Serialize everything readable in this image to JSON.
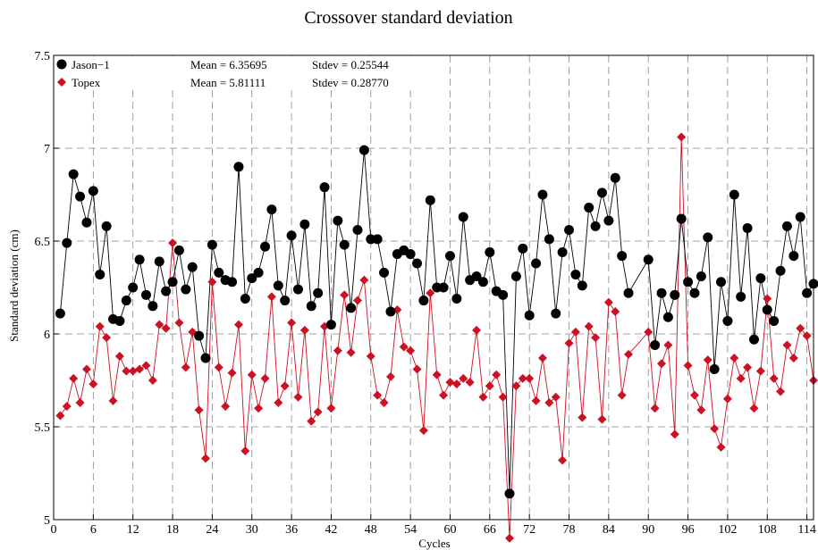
{
  "chart_data": {
    "type": "line",
    "title": "Crossover standard deviation",
    "xlabel": "Cycles",
    "ylabel": "Standard deviation (cm)",
    "xlim": [
      0,
      115
    ],
    "ylim": [
      5,
      7.5
    ],
    "xticks": [
      "0",
      "6",
      "12",
      "18",
      "24",
      "30",
      "36",
      "42",
      "48",
      "54",
      "60",
      "66",
      "72",
      "78",
      "84",
      "90",
      "96",
      "102",
      "108",
      "114"
    ],
    "yticks": [
      "5",
      "5.5",
      "6",
      "6.5",
      "7",
      "7.5"
    ],
    "grid": true,
    "legend_position": "top-left",
    "series": [
      {
        "name": "Jason−1",
        "color": "#000000",
        "marker": "circle",
        "stats": {
          "mean_label": "Mean = 6.35695",
          "stdev_label": "Stdev = 0.25544"
        },
        "x": [
          1,
          2,
          3,
          4,
          5,
          6,
          7,
          8,
          9,
          10,
          11,
          12,
          13,
          14,
          15,
          16,
          17,
          18,
          19,
          20,
          21,
          22,
          23,
          24,
          25,
          26,
          27,
          28,
          29,
          30,
          31,
          32,
          33,
          34,
          35,
          36,
          37,
          38,
          39,
          40,
          41,
          42,
          43,
          44,
          45,
          46,
          47,
          48,
          49,
          50,
          51,
          52,
          53,
          54,
          55,
          56,
          57,
          58,
          59,
          60,
          61,
          62,
          63,
          64,
          65,
          66,
          67,
          68,
          69,
          70,
          71,
          72,
          73,
          74,
          75,
          76,
          77,
          78,
          79,
          80,
          81,
          82,
          83,
          84,
          85,
          86,
          87,
          90,
          91,
          92,
          93,
          94,
          95,
          96,
          97,
          98,
          99,
          100,
          101,
          102,
          103,
          104,
          105,
          106,
          107,
          108,
          109,
          110,
          111,
          112,
          113,
          114,
          115
        ],
        "y": [
          6.11,
          6.49,
          6.86,
          6.74,
          6.6,
          6.77,
          6.32,
          6.58,
          6.08,
          6.07,
          6.18,
          6.25,
          6.4,
          6.21,
          6.15,
          6.39,
          6.23,
          6.28,
          6.45,
          6.24,
          6.36,
          5.99,
          5.87,
          6.48,
          6.33,
          6.29,
          6.28,
          6.9,
          6.19,
          6.3,
          6.33,
          6.47,
          6.67,
          6.26,
          6.18,
          6.53,
          6.24,
          6.59,
          6.15,
          6.22,
          6.79,
          6.05,
          6.61,
          6.48,
          6.14,
          6.56,
          6.99,
          6.51,
          6.51,
          6.33,
          6.12,
          6.43,
          6.45,
          6.43,
          6.38,
          6.18,
          6.72,
          6.25,
          6.25,
          6.42,
          6.19,
          6.63,
          6.29,
          6.31,
          6.28,
          6.44,
          6.23,
          6.21,
          5.14,
          6.31,
          6.46,
          6.1,
          6.38,
          6.75,
          6.51,
          6.11,
          6.44,
          6.56,
          6.32,
          6.26,
          6.68,
          6.58,
          6.76,
          6.61,
          6.84,
          6.42,
          6.22,
          6.4,
          5.94,
          6.22,
          6.09,
          6.21,
          6.62,
          6.28,
          6.22,
          6.31,
          6.52,
          5.81,
          6.28,
          6.07,
          6.75,
          6.2,
          6.57,
          5.97,
          6.3,
          6.13,
          6.07,
          6.34,
          6.58,
          6.42,
          6.63,
          6.22,
          6.27
        ]
      },
      {
        "name": "Topex",
        "color": "#cc1122",
        "marker": "diamond",
        "stats": {
          "mean_label": "Mean = 5.81111",
          "stdev_label": "Stdev = 0.28770"
        },
        "x": [
          1,
          2,
          3,
          4,
          5,
          6,
          7,
          8,
          9,
          10,
          11,
          12,
          13,
          14,
          15,
          16,
          17,
          18,
          19,
          20,
          21,
          22,
          23,
          24,
          25,
          26,
          27,
          28,
          29,
          30,
          31,
          32,
          33,
          34,
          35,
          36,
          37,
          38,
          39,
          40,
          41,
          42,
          43,
          44,
          45,
          46,
          47,
          48,
          49,
          50,
          51,
          52,
          53,
          54,
          55,
          56,
          57,
          58,
          59,
          60,
          61,
          62,
          63,
          64,
          65,
          66,
          67,
          68,
          69,
          70,
          71,
          72,
          73,
          74,
          75,
          76,
          77,
          78,
          79,
          80,
          81,
          82,
          83,
          84,
          85,
          86,
          87,
          90,
          91,
          92,
          93,
          94,
          95,
          96,
          97,
          98,
          99,
          100,
          101,
          102,
          103,
          104,
          105,
          106,
          107,
          108,
          109,
          110,
          111,
          112,
          113,
          114,
          115
        ],
        "y": [
          5.56,
          5.61,
          5.76,
          5.63,
          5.81,
          5.73,
          6.04,
          5.98,
          5.64,
          5.88,
          5.8,
          5.8,
          5.81,
          5.83,
          5.75,
          6.05,
          6.03,
          6.49,
          6.06,
          5.82,
          6.01,
          5.59,
          5.33,
          6.28,
          5.82,
          5.61,
          5.79,
          6.05,
          5.37,
          5.78,
          5.6,
          5.76,
          6.2,
          5.63,
          5.72,
          6.06,
          5.66,
          6.02,
          5.53,
          5.58,
          6.04,
          5.6,
          5.91,
          6.21,
          5.9,
          6.18,
          6.29,
          5.88,
          5.67,
          5.63,
          5.77,
          6.13,
          5.93,
          5.91,
          5.81,
          5.48,
          6.22,
          5.78,
          5.67,
          5.74,
          5.73,
          5.76,
          5.74,
          6.02,
          5.66,
          5.72,
          5.78,
          5.66,
          4.9,
          5.72,
          5.76,
          5.76,
          5.64,
          5.87,
          5.63,
          5.66,
          5.32,
          5.95,
          6.01,
          5.55,
          6.04,
          5.98,
          5.54,
          6.17,
          6.12,
          5.67,
          5.89,
          6.01,
          5.6,
          5.84,
          5.94,
          5.46,
          7.06,
          5.83,
          5.67,
          5.59,
          5.86,
          5.49,
          5.39,
          5.65,
          5.87,
          5.76,
          5.82,
          5.6,
          5.8,
          6.19,
          5.76,
          5.69,
          5.94,
          5.87,
          6.03,
          5.99,
          5.75
        ]
      }
    ]
  }
}
